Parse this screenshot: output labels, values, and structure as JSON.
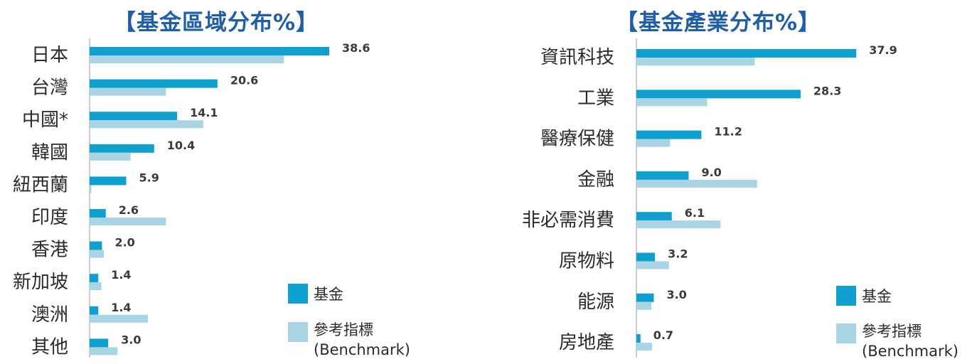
{
  "colors": {
    "fund": "#0fa0cf",
    "benchmark": "#a9d4e3",
    "axis": "#9a9a9a",
    "title": "#1e5fa8"
  },
  "chart_data": [
    {
      "type": "bar",
      "orientation": "horizontal",
      "title": "【基金區域分布%】",
      "categories": [
        "日本",
        "台灣",
        "中國*",
        "韓國",
        "紐西蘭",
        "印度",
        "香港",
        "新加坡",
        "澳洲",
        "其他"
      ],
      "series": [
        {
          "name": "基金",
          "values": [
            38.6,
            20.6,
            14.1,
            10.4,
            5.9,
            2.6,
            2.0,
            1.4,
            1.4,
            3.0
          ]
        },
        {
          "name": "參考指標 (Benchmark)",
          "values": [
            31.3,
            12.3,
            18.3,
            6.6,
            0.3,
            12.3,
            2.3,
            1.9,
            9.4,
            4.5
          ]
        }
      ],
      "data_labels": [
        "38.6",
        "20.6",
        "14.1",
        "10.4",
        "5.9",
        "2.6",
        "2.0",
        "1.4",
        "1.4",
        "3.0"
      ],
      "xlim": [
        0,
        42
      ],
      "legend": {
        "placement": "bottom-right",
        "fund_label": "基金",
        "bench_line1": "參考指標",
        "bench_line2": "(Benchmark)"
      }
    },
    {
      "type": "bar",
      "orientation": "horizontal",
      "title": "【基金產業分布%】",
      "categories": [
        "資訊科技",
        "工業",
        "醫療保健",
        "金融",
        "非必需消費",
        "原物料",
        "能源",
        "房地產"
      ],
      "series": [
        {
          "name": "基金",
          "values": [
            37.9,
            28.3,
            11.2,
            9.0,
            6.1,
            3.2,
            3.0,
            0.7
          ]
        },
        {
          "name": "參考指標 (Benchmark)",
          "values": [
            20.4,
            12.2,
            5.8,
            20.8,
            14.5,
            5.6,
            2.6,
            2.7
          ]
        }
      ],
      "data_labels": [
        "37.9",
        "28.3",
        "11.2",
        "9.0",
        "6.1",
        "3.2",
        "3.0",
        "0.7"
      ],
      "xlim": [
        0,
        42
      ],
      "legend": {
        "placement": "bottom-right",
        "fund_label": "基金",
        "bench_line1": "參考指標",
        "bench_line2": "(Benchmark)"
      }
    }
  ]
}
